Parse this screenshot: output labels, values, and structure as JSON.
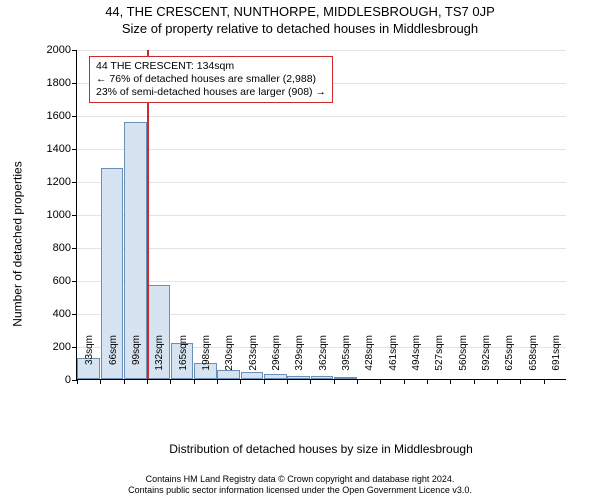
{
  "title": {
    "line1": "44, THE CRESCENT, NUNTHORPE, MIDDLESBROUGH, TS7 0JP",
    "line2": "Size of property relative to detached houses in Middlesbrough",
    "fontsize": 13
  },
  "chart": {
    "type": "histogram",
    "background_color": "#ffffff",
    "grid_color": "#e4e4e4",
    "axis_color": "#000000",
    "bar_fill": "#d6e4f2",
    "bar_border": "#6b8fb5",
    "marker_color": "#cc2b2b",
    "ylim": [
      0,
      2000
    ],
    "ytick_step": 200,
    "yticks": [
      0,
      200,
      400,
      600,
      800,
      1000,
      1200,
      1400,
      1600,
      1800,
      2000
    ],
    "ylabel": "Number of detached properties",
    "xlabel": "Distribution of detached houses by size in Middlesbrough",
    "x_categories": [
      "33sqm",
      "66sqm",
      "99sqm",
      "132sqm",
      "165sqm",
      "198sqm",
      "230sqm",
      "263sqm",
      "296sqm",
      "329sqm",
      "362sqm",
      "395sqm",
      "428sqm",
      "461sqm",
      "494sqm",
      "527sqm",
      "560sqm",
      "592sqm",
      "625sqm",
      "658sqm",
      "691sqm"
    ],
    "values": [
      130,
      1280,
      1560,
      570,
      220,
      100,
      55,
      40,
      30,
      20,
      20,
      10,
      0,
      0,
      0,
      0,
      0,
      0,
      0,
      0,
      0
    ],
    "marker_bin_index": 3,
    "callout": {
      "line1": "44 THE CRESCENT: 134sqm",
      "line2": "← 76% of detached houses are smaller (2,988)",
      "line3": "23% of semi-detached houses are larger (908) →"
    },
    "tick_fontsize": 11,
    "xlabel_fontsize": 12,
    "ylabel_fontsize": 12
  },
  "footer": {
    "line1": "Contains HM Land Registry data © Crown copyright and database right 2024.",
    "line2": "Contains public sector information licensed under the Open Government Licence v3.0."
  }
}
